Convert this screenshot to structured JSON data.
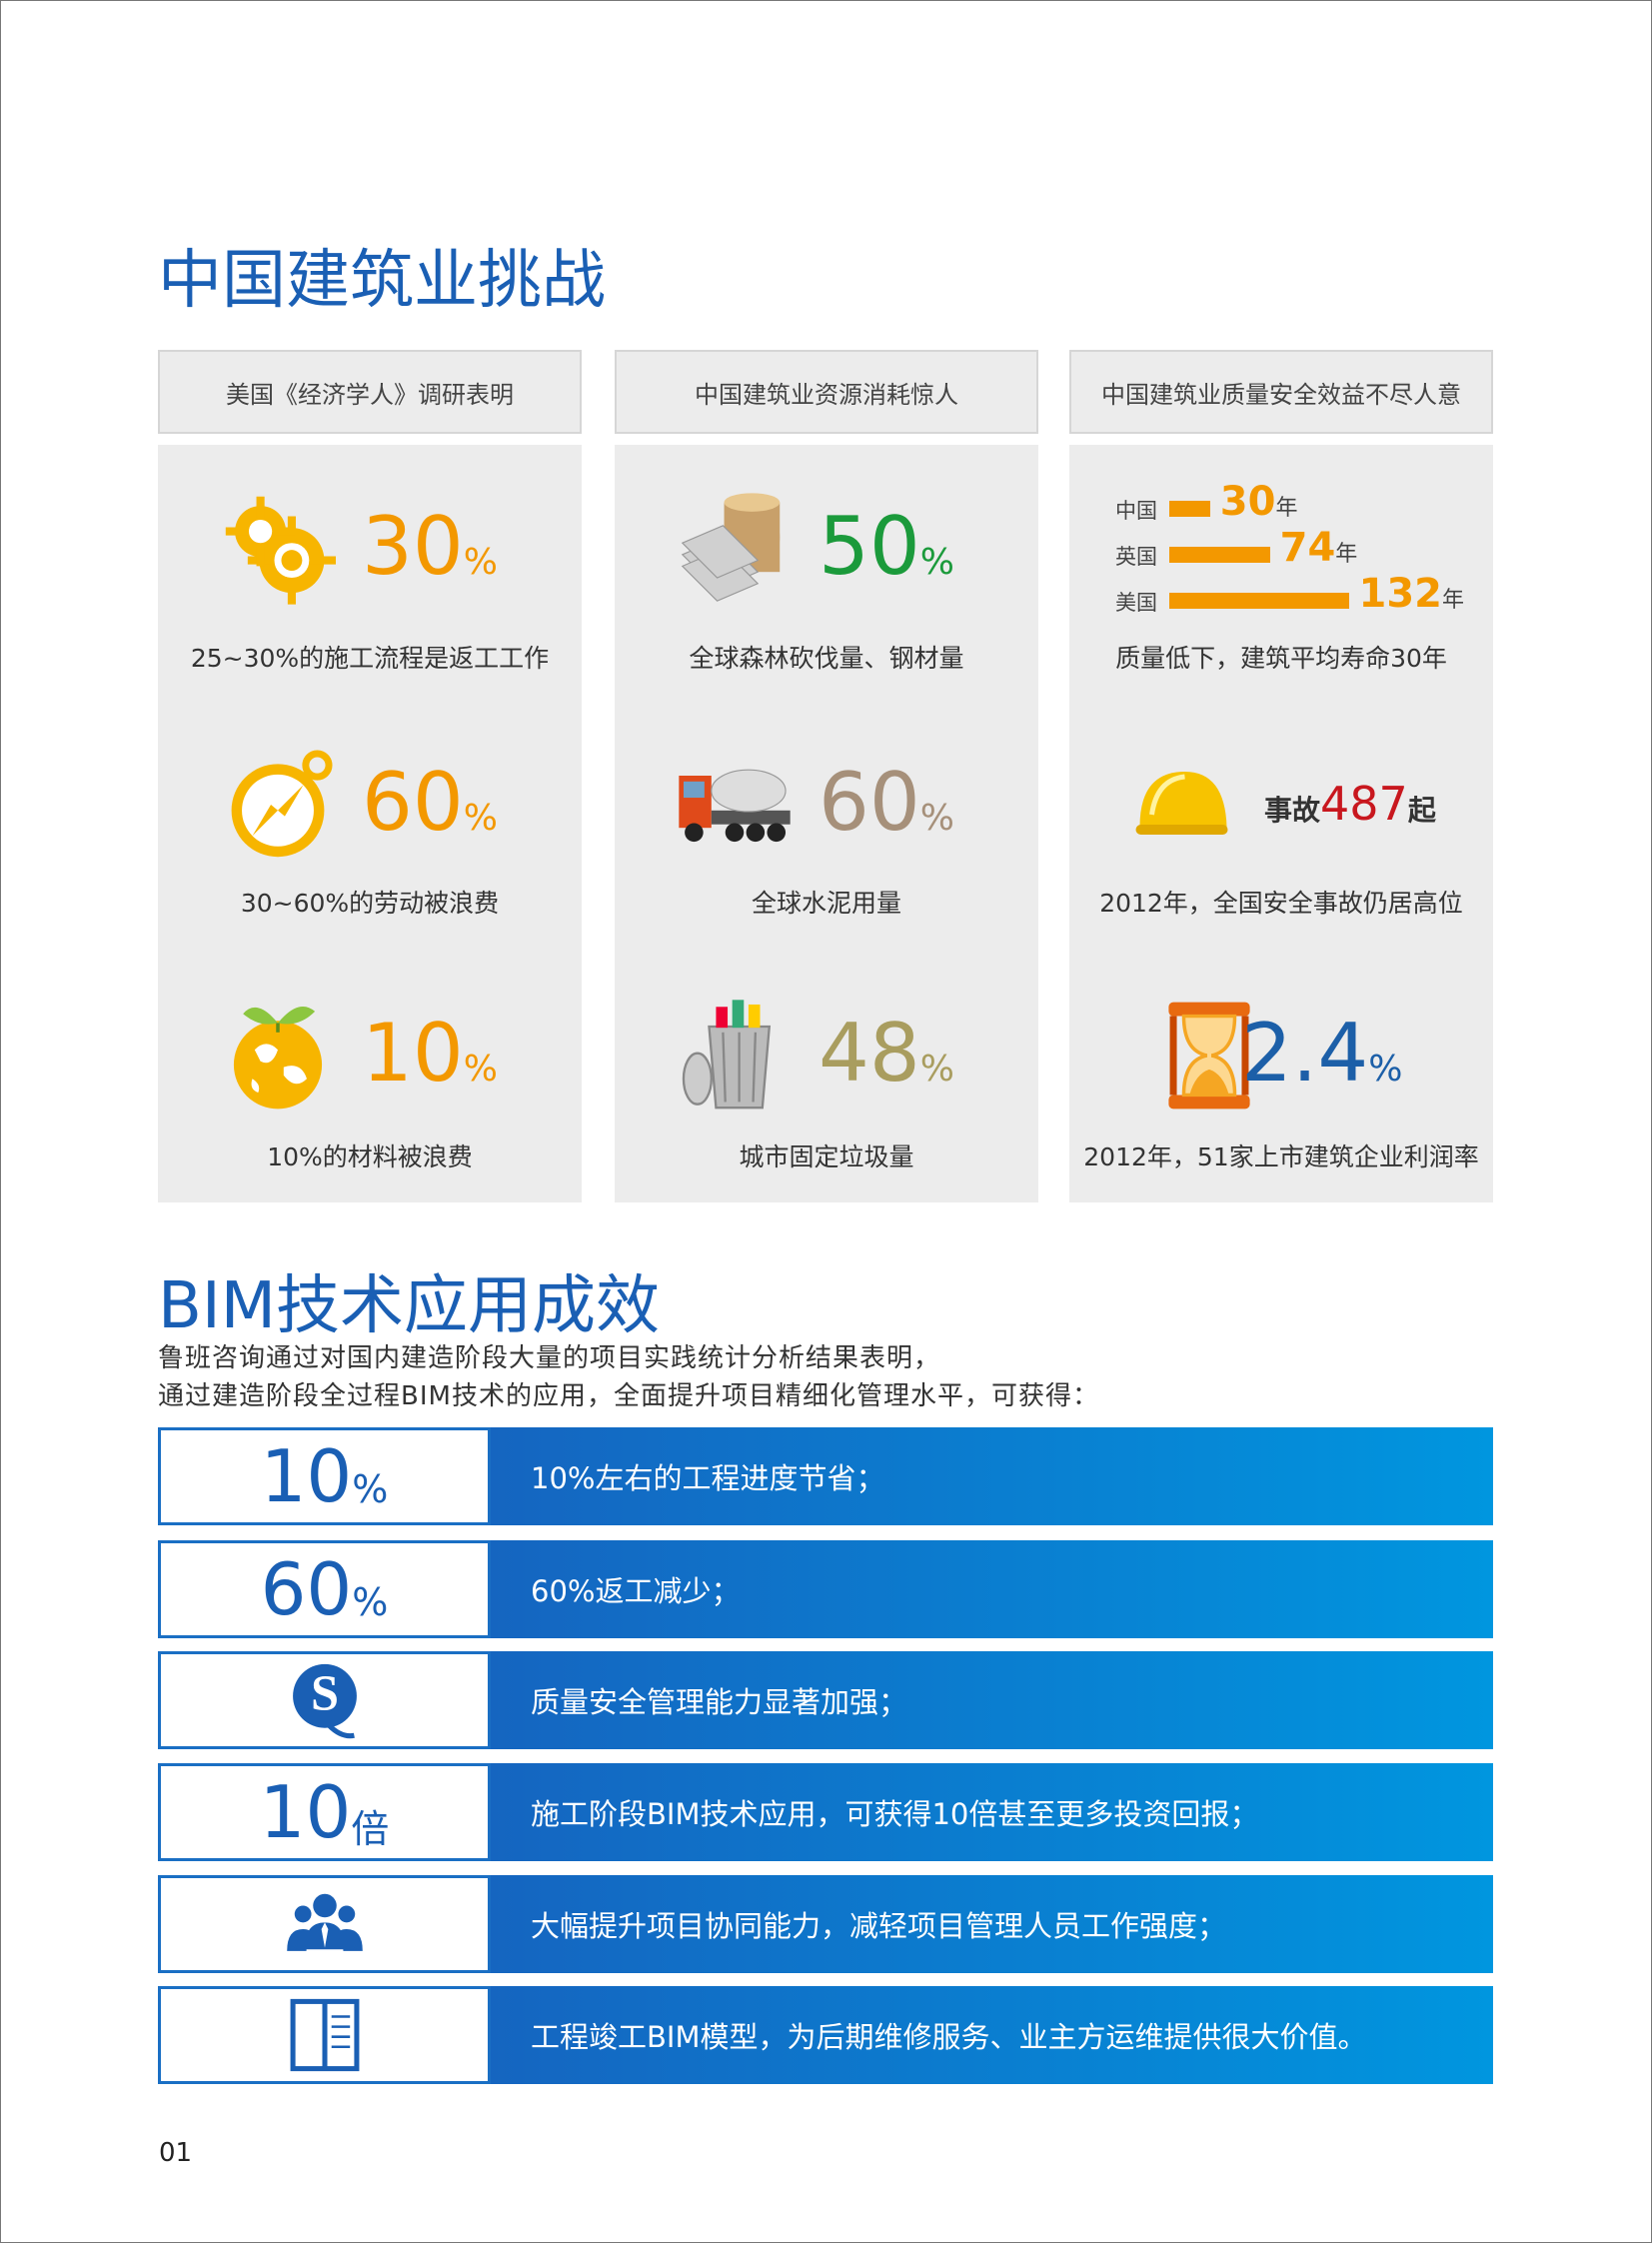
{
  "section1": {
    "title": "中国建筑业挑战",
    "columns": [
      {
        "header": "美国《经济学人》调研表明",
        "items": [
          {
            "value": "30",
            "unit": "%",
            "caption": "25~30%的施工流程是返工工作"
          },
          {
            "value": "60",
            "unit": "%",
            "caption": "30~60%的劳动被浪费"
          },
          {
            "value": "10",
            "unit": "%",
            "caption": "10%的材料被浪费"
          }
        ]
      },
      {
        "header": "中国建筑业资源消耗惊人",
        "items": [
          {
            "value": "50",
            "unit": "%",
            "caption": "全球森林砍伐量、钢材量"
          },
          {
            "value": "60",
            "unit": "%",
            "caption": "全球水泥用量"
          },
          {
            "value": "48",
            "unit": "%",
            "caption": "城市固定垃圾量"
          }
        ]
      },
      {
        "header": "中国建筑业质量安全效益不尽人意",
        "items": [
          {
            "bars": [
              {
                "label": "中国",
                "value": 30,
                "unit": "年"
              },
              {
                "label": "英国",
                "value": 74,
                "unit": "年"
              },
              {
                "label": "美国",
                "value": 132,
                "unit": "年"
              }
            ],
            "caption": "质量低下，建筑平均寿命30年"
          },
          {
            "prefix": "事故",
            "value": "487",
            "unit": "起",
            "caption": "2012年，全国安全事故仍居高位"
          },
          {
            "value": "2.4",
            "unit": "%",
            "caption": "2012年，51家上市建筑企业利润率"
          }
        ]
      }
    ]
  },
  "section2": {
    "title": "BIM技术应用成效",
    "intro": [
      "鲁班咨询通过对国内建造阶段大量的项目实践统计分析结果表明，",
      "通过建造阶段全过程BIM技术的应用，全面提升项目精细化管理水平，可获得："
    ],
    "rows": [
      {
        "value": "10",
        "unit": "%",
        "text": "10%左右的工程进度节省；"
      },
      {
        "value": "60",
        "unit": "%",
        "text": "60%返工减少；"
      },
      {
        "text": "质量安全管理能力显著加强；"
      },
      {
        "value": "10",
        "unit": "倍",
        "text": "施工阶段BIM技术应用，可获得10倍甚至更多投资回报；"
      },
      {
        "text": "大幅提升项目协同能力，减轻项目管理人员工作强度；"
      },
      {
        "text": "工程竣工BIM模型，为后期维修服务、业主方运维提供很大价值。"
      }
    ]
  },
  "page_number": "01"
}
